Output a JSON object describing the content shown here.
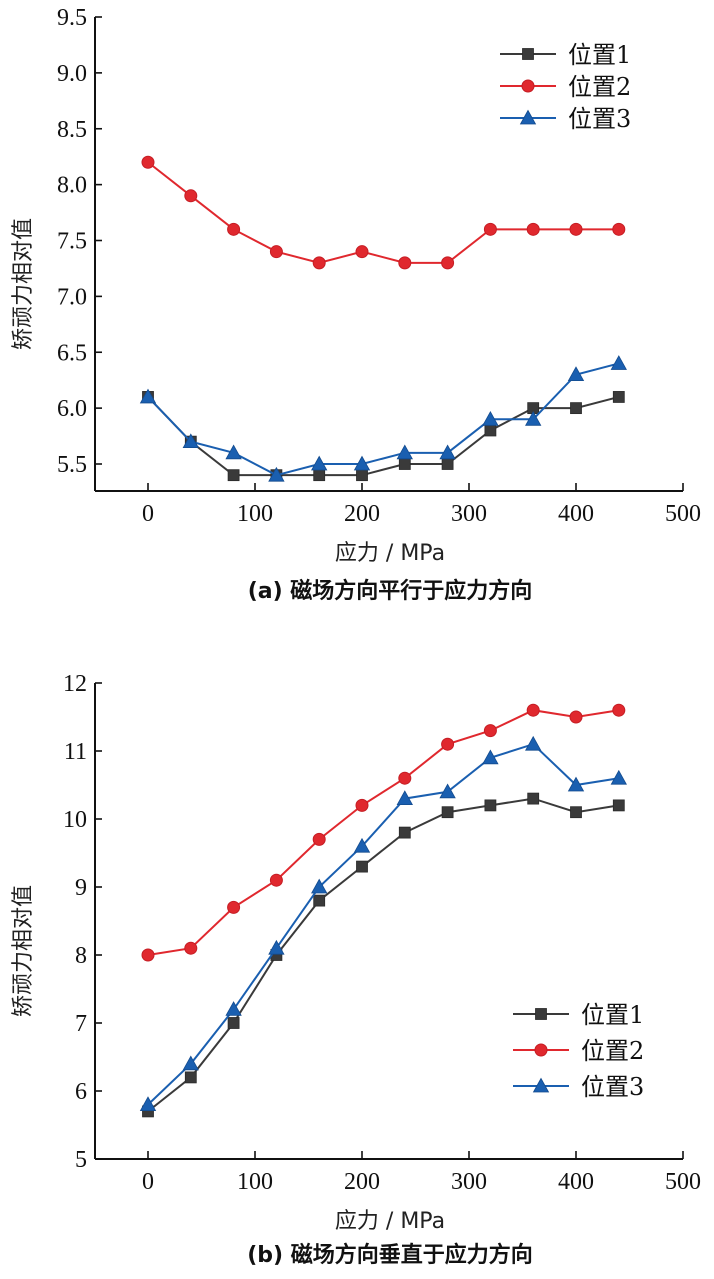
{
  "chart_data": [
    {
      "type": "line",
      "caption": "(a) 磁场方向平行于应力方向",
      "title": "",
      "xlabel": "应力 / MPa",
      "ylabel": "矫顽力相对值",
      "xlim": [
        -50,
        500
      ],
      "ylim": [
        5.25,
        9.5
      ],
      "xticks": [
        0,
        100,
        200,
        300,
        400,
        500
      ],
      "yticks": [
        5.5,
        6.0,
        6.5,
        7.0,
        7.5,
        8.0,
        8.5,
        9.0,
        9.5
      ],
      "ytick_labels": [
        "5.5",
        "6.0",
        "6.5",
        "7.0",
        "7.5",
        "8.0",
        "8.5",
        "9.0",
        "9.5"
      ],
      "grid": false,
      "legend_position": "top-right",
      "x": [
        0,
        40,
        80,
        120,
        160,
        200,
        240,
        280,
        320,
        360,
        400,
        440
      ],
      "series": [
        {
          "name": "位置1",
          "marker": "square",
          "color": "#3a3a3a",
          "values": [
            6.1,
            5.7,
            5.4,
            5.4,
            5.4,
            5.4,
            5.5,
            5.5,
            5.8,
            6.0,
            6.0,
            6.1
          ]
        },
        {
          "name": "位置2",
          "marker": "circle",
          "color": "#e0282e",
          "values": [
            8.2,
            7.9,
            7.6,
            7.4,
            7.3,
            7.4,
            7.3,
            7.3,
            7.6,
            7.6,
            7.6,
            7.6
          ]
        },
        {
          "name": "位置3",
          "marker": "triangle",
          "color": "#1a5fb0",
          "values": [
            6.1,
            5.7,
            5.6,
            5.4,
            5.5,
            5.5,
            5.6,
            5.6,
            5.9,
            5.9,
            6.3,
            6.4
          ]
        }
      ]
    },
    {
      "type": "line",
      "caption": "(b) 磁场方向垂直于应力方向",
      "title": "",
      "xlabel": "应力 / MPa",
      "ylabel": "矫顽力相对值",
      "xlim": [
        -50,
        500
      ],
      "ylim": [
        5,
        12
      ],
      "xticks": [
        0,
        100,
        200,
        300,
        400,
        500
      ],
      "yticks": [
        5,
        6,
        7,
        8,
        9,
        10,
        11,
        12
      ],
      "ytick_labels": [
        "5",
        "6",
        "7",
        "8",
        "9",
        "10",
        "11",
        "12"
      ],
      "grid": false,
      "legend_position": "bottom-right",
      "x": [
        0,
        40,
        80,
        120,
        160,
        200,
        240,
        280,
        320,
        360,
        400,
        440
      ],
      "series": [
        {
          "name": "位置1",
          "marker": "square",
          "color": "#3a3a3a",
          "values": [
            5.7,
            6.2,
            7.0,
            8.0,
            8.8,
            9.3,
            9.8,
            10.1,
            10.2,
            10.3,
            10.1,
            10.2
          ]
        },
        {
          "name": "位置2",
          "marker": "circle",
          "color": "#e0282e",
          "values": [
            8.0,
            8.1,
            8.7,
            9.1,
            9.7,
            10.2,
            10.6,
            11.1,
            11.3,
            11.6,
            11.5,
            11.6
          ]
        },
        {
          "name": "位置3",
          "marker": "triangle",
          "color": "#1a5fb0",
          "values": [
            5.8,
            6.4,
            7.2,
            8.1,
            9.0,
            9.6,
            10.3,
            10.4,
            10.9,
            11.1,
            10.5,
            10.6
          ]
        }
      ]
    }
  ]
}
